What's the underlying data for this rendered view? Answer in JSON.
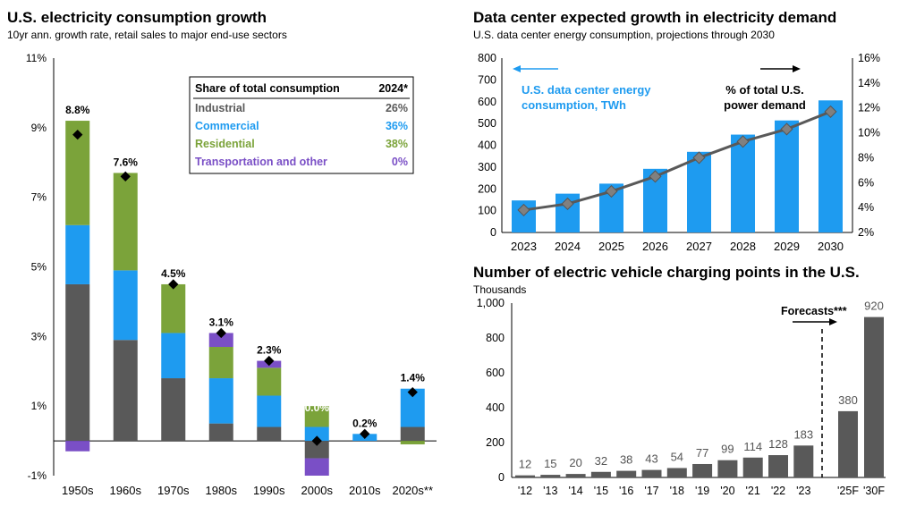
{
  "charts": {
    "left": {
      "title": "U.S. electricity consumption growth",
      "subtitle": "10yr ann. growth rate, retail sales to major end-use sectors"
    },
    "topright": {
      "title": "Data center expected growth in electricity demand",
      "subtitle": "U.S. data center energy consumption, projections through 2030"
    },
    "bottomright": {
      "title": "Number of electric vehicle charging points in the U.S.",
      "subtitle": "Thousands"
    }
  },
  "colors": {
    "industrial": "#595959",
    "commercial": "#1e9bf0",
    "residential": "#7ba33a",
    "transportation": "#7a4fc6",
    "data_center": "#1e9bf0",
    "ev": "#595959",
    "line": "#595959"
  },
  "chart_data": [
    {
      "id": "electricity-growth",
      "type": "bar",
      "stacked": true,
      "title": "U.S. electricity consumption growth",
      "subtitle": "10yr ann. growth rate, retail sales to major end-use sectors",
      "categories": [
        "1950s",
        "1960s",
        "1970s",
        "1980s",
        "1990s",
        "2000s",
        "2010s",
        "2020s**"
      ],
      "series": [
        {
          "name": "Industrial",
          "values": [
            4.5,
            2.9,
            1.8,
            0.5,
            0.4,
            -0.5,
            0.0,
            0.4
          ]
        },
        {
          "name": "Commercial",
          "values": [
            1.7,
            2.0,
            1.3,
            1.3,
            0.9,
            0.4,
            0.2,
            1.1
          ]
        },
        {
          "name": "Residential",
          "values": [
            3.0,
            2.8,
            1.4,
            0.9,
            0.8,
            0.6,
            0.0,
            -0.1
          ]
        },
        {
          "name": "Transportation and other",
          "values": [
            -0.3,
            0.0,
            0.0,
            0.4,
            0.2,
            -0.5,
            0.0,
            0.0
          ]
        }
      ],
      "totals": [
        8.8,
        7.6,
        4.5,
        3.1,
        2.3,
        0.0,
        0.2,
        1.4
      ],
      "total_labels": [
        "8.8%",
        "7.6%",
        "4.5%",
        "3.1%",
        "2.3%",
        "0.0%",
        "0.2%",
        "1.4%"
      ],
      "ylim": [
        -1,
        11
      ],
      "yticks": [
        -1,
        1,
        3,
        5,
        7,
        9,
        11
      ],
      "ytick_labels": [
        "-1%",
        "1%",
        "3%",
        "5%",
        "7%",
        "9%",
        "11%"
      ],
      "legend_table": {
        "header": [
          "Share of total consumption",
          "2024*"
        ],
        "rows": [
          {
            "name": "Industrial",
            "value": "26%"
          },
          {
            "name": "Commercial",
            "value": "36%"
          },
          {
            "name": "Residential",
            "value": "38%"
          },
          {
            "name": "Transportation and other",
            "value": "0%"
          }
        ]
      }
    },
    {
      "id": "data-center",
      "type": "bar",
      "title": "Data center expected growth in electricity demand",
      "subtitle": "U.S. data center energy consumption, projections through 2030",
      "categories": [
        "2023",
        "2024",
        "2025",
        "2026",
        "2027",
        "2028",
        "2029",
        "2030"
      ],
      "series": [
        {
          "name": "U.S. data center energy consumption, TWh",
          "type": "bar",
          "axis": "left",
          "values": [
            147,
            178,
            224,
            292,
            370,
            449,
            514,
            606
          ]
        },
        {
          "name": "% of total U.S. power demand",
          "type": "line",
          "axis": "right",
          "values": [
            3.8,
            4.3,
            5.3,
            6.5,
            8.0,
            9.3,
            10.3,
            11.7
          ]
        }
      ],
      "ylim": [
        0,
        800
      ],
      "yticks": [
        0,
        100,
        200,
        300,
        400,
        500,
        600,
        700,
        800
      ],
      "y2lim": [
        2,
        16
      ],
      "y2ticks": [
        2,
        4,
        6,
        8,
        10,
        12,
        14,
        16
      ],
      "y2tick_labels": [
        "2%",
        "4%",
        "6%",
        "8%",
        "10%",
        "12%",
        "14%",
        "16%"
      ],
      "annotations": {
        "left_label_line1": "U.S. data center energy",
        "left_label_line2": "consumption, TWh",
        "right_label_line1": "% of total U.S.",
        "right_label_line2": "power demand"
      }
    },
    {
      "id": "ev-charging",
      "type": "bar",
      "title": "Number of electric vehicle charging points in the U.S.",
      "subtitle": "Thousands",
      "categories": [
        "'12",
        "'13",
        "'14",
        "'15",
        "'16",
        "'17",
        "'18",
        "'19",
        "'20",
        "'21",
        "'22",
        "'23",
        "'25F",
        "'30F"
      ],
      "values": [
        12,
        15,
        20,
        32,
        38,
        43,
        54,
        77,
        99,
        114,
        128,
        183,
        380,
        920
      ],
      "ylim": [
        0,
        1000
      ],
      "yticks": [
        0,
        200,
        400,
        600,
        800,
        1000
      ],
      "ytick_labels": [
        "0",
        "200",
        "400",
        "600",
        "800",
        "1,000"
      ],
      "annotation": "Forecasts***"
    }
  ]
}
